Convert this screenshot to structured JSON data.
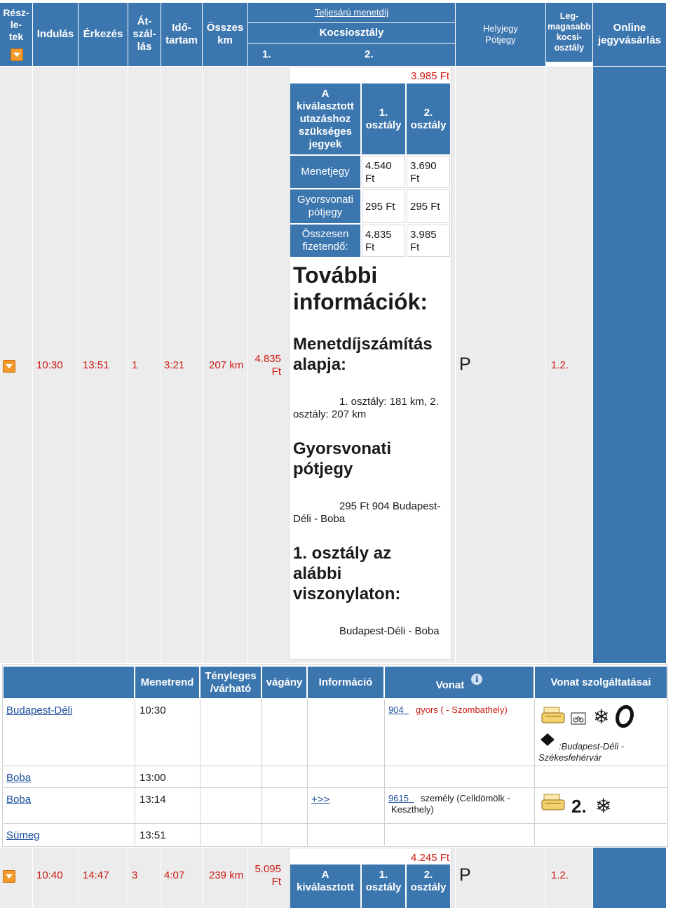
{
  "header": {
    "reszletek": "Rész-\nle-\ntek",
    "indulas": "Indulás",
    "erkezes": "Érkezés",
    "atszallas": "Át-\nszál-\nlás",
    "idotartam": "Idő-\ntartam",
    "osszes_km": "Összes\nkm",
    "teljesaru": "Teljesárú menetdíj",
    "kocsiosztaly": "Kocsiosztály",
    "class1": "1.",
    "class2": "2.",
    "helyjegy": "Helyjegy\nPótjegy",
    "legmagasabb": "Leg-\nmagasabb\nkocsi-\nosztály",
    "online": "Online\njegyvásárlás"
  },
  "row1": {
    "departure": "10:30",
    "arrival": "13:51",
    "transfers": "1",
    "duration": "3:21",
    "distance": "207 km",
    "price": "4.835\nFt",
    "class2_price_top": "3.985 Ft",
    "helyjegy": "P",
    "classes": "1.2."
  },
  "fare_table": {
    "header_label": "A\nkiválasztott\nutazáshoz\nszükséges\njegyek",
    "col1": "1.\nosztály",
    "col2": "2.\nosztály",
    "rows": [
      {
        "label": "Menetjegy",
        "v1": "4.540\nFt",
        "v2": "3.690\nFt"
      },
      {
        "label": "Gyorsvonati\npótjegy",
        "v1": "295 Ft",
        "v2": "295 Ft"
      },
      {
        "label": "Összesen\nfizetendő:",
        "v1": "4.835\nFt",
        "v2": "3.985\nFt"
      }
    ]
  },
  "info": {
    "title": "További\ninformációk:",
    "basis_title": "Menetdíjszámítás\nalapja:",
    "basis_text": "1. osztály: 181 km, 2.\nosztály: 207 km",
    "supplement_title": "Gyorsvonati\npótjegy",
    "supplement_text": "295 Ft 904 Budapest-\nDéli - Boba",
    "first_class_title": "1. osztály az\nalábbi\nviszonylaton:",
    "first_class_text": "Budapest-Déli - Boba"
  },
  "detail_header": {
    "menetrend": "Menetrend",
    "tenyleges": "Tényleges\n/várható",
    "vagany": "vágány",
    "informacio": "Információ",
    "vonat": "Vonat",
    "szolgaltatasai": "Vonat szolgáltatásai"
  },
  "stops": [
    {
      "station": "Budapest-Déli",
      "time": "10:30",
      "info": "",
      "train_no": "904",
      "train_desc": "gyors ( - Szombathely)",
      "service_note": ":Budapest-Déli -\nSzékesfehérvár"
    },
    {
      "station": "Boba",
      "time": "13:00"
    },
    {
      "station": "Boba",
      "time": "13:14",
      "info": "+>>",
      "train_no": "9615",
      "train_desc": "személy (Celldömölk -\nKeszthely)"
    },
    {
      "station": "Sümeg",
      "time": "13:51"
    }
  ],
  "row2": {
    "departure": "10:40",
    "arrival": "14:47",
    "transfers": "3",
    "duration": "4:07",
    "distance": "239 km",
    "price": "5.095\nFt",
    "class2_price_top": "4.245 Ft",
    "label": "A\nkiválasztott",
    "col1": "1.\nosztály",
    "col2": "2.\nosztály",
    "helyjegy": "P",
    "classes": "1.2."
  },
  "colors": {
    "header_blue": "#3c76ae",
    "price_red": "#cc1b14",
    "link_blue": "#1b4f9c",
    "expand_orange": "#f49a2c"
  },
  "icons": [
    "expand-arrow-icon",
    "info-icon",
    "printer-ticket-icon",
    "bicycle-icon",
    "air-conditioning-icon",
    "restaurant-icon",
    "diamond-icon",
    "second-class-icon"
  ]
}
